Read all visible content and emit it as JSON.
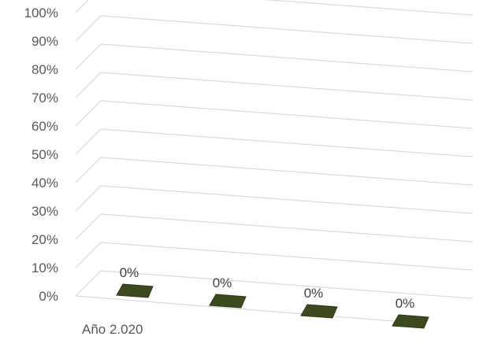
{
  "chart_data": {
    "type": "bar",
    "title": "",
    "xlabel": "",
    "ylabel": "",
    "categories": [
      "Año 2.020",
      "",
      "",
      ""
    ],
    "values": [
      0,
      0,
      0,
      0
    ],
    "data_labels": [
      "0%",
      "0%",
      "0%",
      "0%"
    ],
    "ylim": [
      0,
      100
    ],
    "y_ticks": [
      "0%",
      "10%",
      "20%",
      "30%",
      "40%",
      "50%",
      "60%",
      "70%",
      "80%",
      "90%",
      "100%"
    ],
    "grid": true,
    "legend": "none",
    "three_d": true,
    "colors": {
      "bar": "#3d4a1e",
      "bar_edge": "#2e3816",
      "grid": "#d9d9d9",
      "text": "#595959"
    }
  }
}
